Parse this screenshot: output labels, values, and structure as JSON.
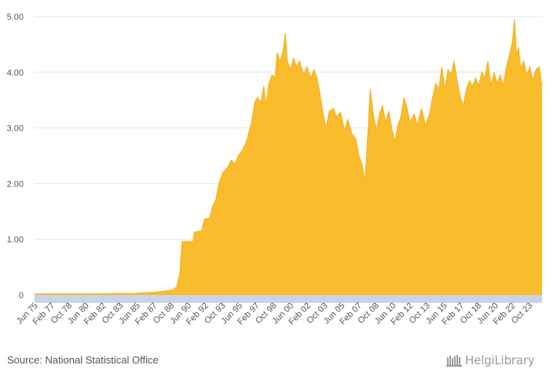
{
  "chart_data": {
    "type": "area",
    "title": "",
    "xlabel": "",
    "ylabel": "",
    "ylim": [
      0,
      5
    ],
    "yticks": [
      0,
      1,
      2,
      3,
      4,
      5
    ],
    "ytick_labels": [
      "0",
      "1.00",
      "2.00",
      "3.00",
      "4.00",
      "5.00"
    ],
    "xlim": [
      1975.3,
      2024.9
    ],
    "xtick_labels": [
      {
        "label": "Jun 75",
        "x": 1975.42
      },
      {
        "label": "Feb 77",
        "x": 1977.08
      },
      {
        "label": "Oct 78",
        "x": 1978.75
      },
      {
        "label": "Jun 80",
        "x": 1980.42
      },
      {
        "label": "Feb 82",
        "x": 1982.08
      },
      {
        "label": "Oct 83",
        "x": 1983.75
      },
      {
        "label": "Jun 85",
        "x": 1985.42
      },
      {
        "label": "Feb 87",
        "x": 1987.08
      },
      {
        "label": "Oct 88",
        "x": 1988.75
      },
      {
        "label": "Jun 90",
        "x": 1990.42
      },
      {
        "label": "Feb 92",
        "x": 1992.08
      },
      {
        "label": "Oct 93",
        "x": 1993.75
      },
      {
        "label": "Jun 95",
        "x": 1995.42
      },
      {
        "label": "Feb 97",
        "x": 1997.08
      },
      {
        "label": "Oct 98",
        "x": 1998.75
      },
      {
        "label": "Jun 00",
        "x": 2000.42
      },
      {
        "label": "Feb 02",
        "x": 2002.08
      },
      {
        "label": "Oct 03",
        "x": 2003.75
      },
      {
        "label": "Jun 05",
        "x": 2005.42
      },
      {
        "label": "Feb 07",
        "x": 2007.08
      },
      {
        "label": "Oct 08",
        "x": 2008.75
      },
      {
        "label": "Jun 10",
        "x": 2010.42
      },
      {
        "label": "Feb 12",
        "x": 2012.08
      },
      {
        "label": "Oct 13",
        "x": 2013.75
      },
      {
        "label": "Jun 15",
        "x": 2015.42
      },
      {
        "label": "Feb 17",
        "x": 2017.08
      },
      {
        "label": "Oct 18",
        "x": 2018.75
      },
      {
        "label": "Jun 20",
        "x": 2020.42
      },
      {
        "label": "Feb 22",
        "x": 2022.08
      },
      {
        "label": "Oct 23",
        "x": 2023.75
      }
    ],
    "series": [
      {
        "name": "value",
        "color": "#F9BC2D",
        "points": [
          [
            1975.3,
            0.02
          ],
          [
            1980.0,
            0.02
          ],
          [
            1985.0,
            0.03
          ],
          [
            1987.0,
            0.05
          ],
          [
            1988.0,
            0.07
          ],
          [
            1988.8,
            0.09
          ],
          [
            1989.2,
            0.15
          ],
          [
            1989.5,
            0.4
          ],
          [
            1989.7,
            0.96
          ],
          [
            1990.8,
            0.96
          ],
          [
            1990.9,
            1.13
          ],
          [
            1991.6,
            1.15
          ],
          [
            1991.9,
            1.36
          ],
          [
            1992.4,
            1.38
          ],
          [
            1992.7,
            1.6
          ],
          [
            1993.0,
            1.7
          ],
          [
            1993.3,
            2.0
          ],
          [
            1993.7,
            2.2
          ],
          [
            1994.2,
            2.3
          ],
          [
            1994.5,
            2.42
          ],
          [
            1994.9,
            2.35
          ],
          [
            1995.2,
            2.5
          ],
          [
            1995.6,
            2.6
          ],
          [
            1996.0,
            2.75
          ],
          [
            1996.5,
            3.1
          ],
          [
            1996.8,
            3.45
          ],
          [
            1997.1,
            3.55
          ],
          [
            1997.4,
            3.45
          ],
          [
            1997.7,
            3.75
          ],
          [
            1997.9,
            3.4
          ],
          [
            1998.2,
            3.8
          ],
          [
            1998.5,
            3.95
          ],
          [
            1998.8,
            3.9
          ],
          [
            1999.0,
            4.35
          ],
          [
            1999.3,
            4.2
          ],
          [
            1999.6,
            4.4
          ],
          [
            1999.8,
            4.7
          ],
          [
            2000.0,
            4.2
          ],
          [
            2000.3,
            4.05
          ],
          [
            2000.6,
            4.25
          ],
          [
            2000.9,
            4.1
          ],
          [
            2001.2,
            4.2
          ],
          [
            2001.6,
            3.95
          ],
          [
            2001.9,
            4.1
          ],
          [
            2002.3,
            3.9
          ],
          [
            2002.6,
            4.05
          ],
          [
            2002.9,
            3.9
          ],
          [
            2003.2,
            3.6
          ],
          [
            2003.5,
            3.25
          ],
          [
            2003.8,
            3.0
          ],
          [
            2004.1,
            3.3
          ],
          [
            2004.5,
            3.35
          ],
          [
            2004.8,
            3.2
          ],
          [
            2005.2,
            3.28
          ],
          [
            2005.6,
            2.95
          ],
          [
            2005.9,
            3.15
          ],
          [
            2006.3,
            2.9
          ],
          [
            2006.7,
            2.8
          ],
          [
            2007.0,
            2.5
          ],
          [
            2007.3,
            2.35
          ],
          [
            2007.6,
            2.05
          ],
          [
            2007.9,
            3.0
          ],
          [
            2008.1,
            3.7
          ],
          [
            2008.4,
            3.25
          ],
          [
            2008.7,
            2.95
          ],
          [
            2009.0,
            3.25
          ],
          [
            2009.3,
            3.4
          ],
          [
            2009.6,
            3.1
          ],
          [
            2009.9,
            3.3
          ],
          [
            2010.2,
            3.0
          ],
          [
            2010.5,
            2.75
          ],
          [
            2010.8,
            3.05
          ],
          [
            2011.1,
            3.2
          ],
          [
            2011.4,
            3.55
          ],
          [
            2011.7,
            3.35
          ],
          [
            2012.0,
            3.1
          ],
          [
            2012.4,
            3.25
          ],
          [
            2012.7,
            3.05
          ],
          [
            2013.1,
            3.35
          ],
          [
            2013.5,
            3.05
          ],
          [
            2013.9,
            3.25
          ],
          [
            2014.2,
            3.55
          ],
          [
            2014.5,
            3.8
          ],
          [
            2014.8,
            3.7
          ],
          [
            2015.1,
            4.1
          ],
          [
            2015.4,
            3.7
          ],
          [
            2015.7,
            4.05
          ],
          [
            2016.0,
            3.95
          ],
          [
            2016.3,
            4.2
          ],
          [
            2016.6,
            3.85
          ],
          [
            2016.9,
            3.55
          ],
          [
            2017.2,
            3.4
          ],
          [
            2017.5,
            3.7
          ],
          [
            2017.8,
            3.85
          ],
          [
            2018.1,
            3.75
          ],
          [
            2018.4,
            3.9
          ],
          [
            2018.7,
            3.75
          ],
          [
            2019.0,
            4.0
          ],
          [
            2019.3,
            3.9
          ],
          [
            2019.6,
            4.2
          ],
          [
            2019.9,
            3.75
          ],
          [
            2020.2,
            4.0
          ],
          [
            2020.5,
            3.8
          ],
          [
            2020.8,
            3.95
          ],
          [
            2021.1,
            3.75
          ],
          [
            2021.4,
            4.1
          ],
          [
            2021.7,
            4.3
          ],
          [
            2022.0,
            4.55
          ],
          [
            2022.2,
            4.95
          ],
          [
            2022.4,
            4.3
          ],
          [
            2022.6,
            4.45
          ],
          [
            2022.8,
            4.05
          ],
          [
            2023.1,
            4.2
          ],
          [
            2023.4,
            3.95
          ],
          [
            2023.7,
            4.1
          ],
          [
            2024.0,
            3.85
          ],
          [
            2024.3,
            4.05
          ],
          [
            2024.6,
            4.1
          ],
          [
            2024.9,
            3.75
          ]
        ]
      }
    ]
  },
  "footer": {
    "source": "Source: National Statistical Office",
    "brand_name": "HelgiLibrary"
  },
  "colors": {
    "area": "#F9BC2D",
    "axis_band": "#C8D4EA",
    "grid": "#E6E6E6",
    "text": "#555555",
    "brand": "#9A9A9A"
  }
}
